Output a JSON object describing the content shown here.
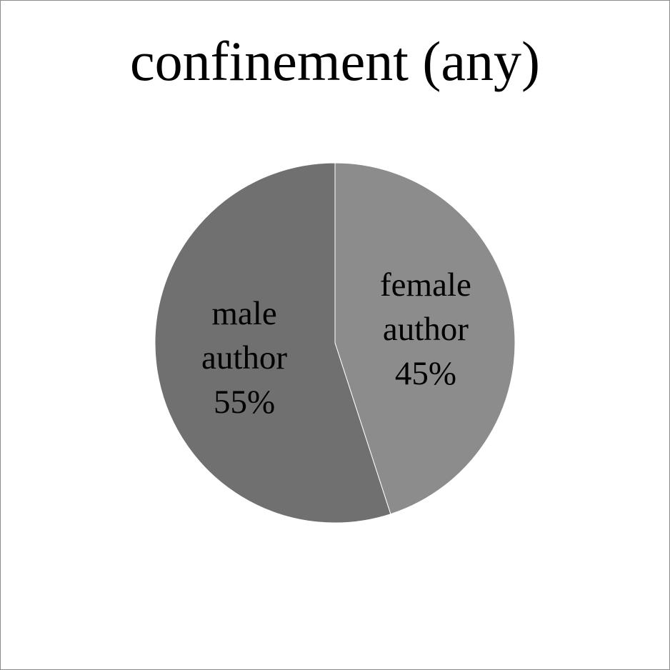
{
  "chart_data": {
    "type": "pie",
    "title": "confinement (any)",
    "slices": [
      {
        "label_lines": [
          "female",
          "author"
        ],
        "pct_label": "45%",
        "value": 45,
        "color": "#8c8c8c"
      },
      {
        "label_lines": [
          "male",
          "author"
        ],
        "pct_label": "55%",
        "value": 55,
        "color": "#707070"
      }
    ],
    "start_angle_deg": 0,
    "direction": "clockwise",
    "legend": "none",
    "data_labels": "inside"
  }
}
